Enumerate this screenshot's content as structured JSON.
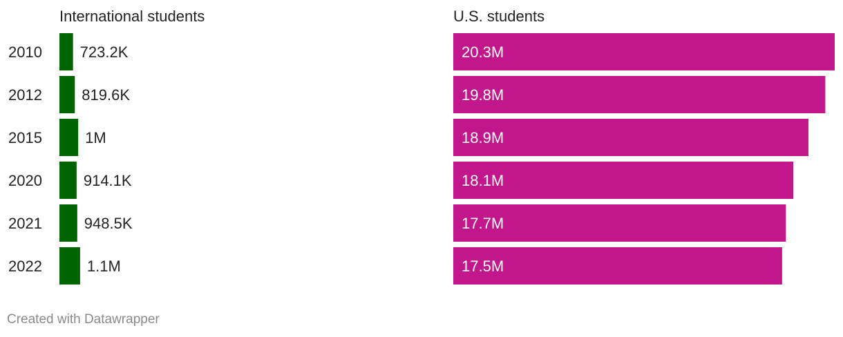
{
  "chart_data": {
    "type": "bar",
    "orientation": "horizontal",
    "categories": [
      "2010",
      "2012",
      "2015",
      "2020",
      "2021",
      "2022"
    ],
    "series": [
      {
        "name": "International students",
        "values": [
          723200,
          819600,
          1000000,
          914100,
          948500,
          1100000
        ],
        "labels": [
          "723.2K",
          "819.6K",
          "1M",
          "914.1K",
          "948.5K",
          "1.1M"
        ],
        "color": "#006400"
      },
      {
        "name": "U.S. students",
        "values": [
          20300000,
          19800000,
          18900000,
          18100000,
          17700000,
          17500000
        ],
        "labels": [
          "20.3M",
          "19.8M",
          "18.9M",
          "18.1M",
          "17.7M",
          "17.5M"
        ],
        "color": "#c2168d"
      }
    ],
    "shared_scale": true,
    "grid": false,
    "legend": "none"
  },
  "footer": {
    "credit": "Created with Datawrapper"
  }
}
